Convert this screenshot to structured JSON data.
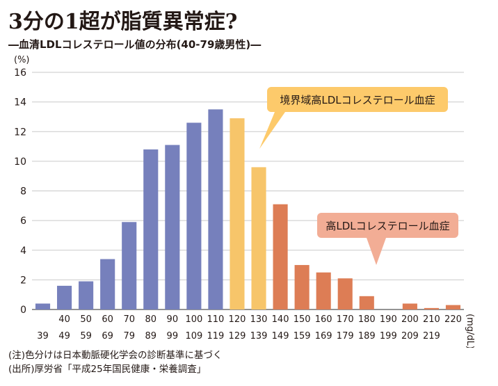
{
  "header": {
    "title": "3分の1超が脂質異常症?",
    "subtitle": "―血清LDLコレステロール値の分布(40-79歳男性)―"
  },
  "footnotes": {
    "note": "(注)色分けは日本動脈硬化学会の診断基準に基づく",
    "source": "(出所)厚労省「平成25年国民健康・栄養調査」"
  },
  "colors": {
    "normal": "#7680bc",
    "borderline": "#f7c56a",
    "high": "#dd7d55",
    "callout_borderline": "#fdca6b",
    "callout_high": "#f2ad95",
    "grid": "#c9c9c9",
    "axis": "#555555",
    "text": "#231815"
  },
  "chart_data": {
    "type": "bar",
    "title": "",
    "ylabel": "(%)",
    "xlabel": "(mg/dL)",
    "ylim": [
      0,
      16
    ],
    "yticks": [
      0,
      2,
      4,
      6,
      8,
      10,
      12,
      14,
      16
    ],
    "grid": true,
    "categories": [
      {
        "top": "",
        "bottom": "39"
      },
      {
        "top": "40",
        "bottom": "49"
      },
      {
        "top": "50",
        "bottom": "59"
      },
      {
        "top": "60",
        "bottom": "69"
      },
      {
        "top": "70",
        "bottom": "79"
      },
      {
        "top": "80",
        "bottom": "89"
      },
      {
        "top": "90",
        "bottom": "99"
      },
      {
        "top": "100",
        "bottom": "109"
      },
      {
        "top": "110",
        "bottom": "119"
      },
      {
        "top": "120",
        "bottom": "129"
      },
      {
        "top": "130",
        "bottom": "139"
      },
      {
        "top": "140",
        "bottom": "149"
      },
      {
        "top": "150",
        "bottom": "159"
      },
      {
        "top": "160",
        "bottom": "169"
      },
      {
        "top": "170",
        "bottom": "179"
      },
      {
        "top": "180",
        "bottom": "189"
      },
      {
        "top": "190",
        "bottom": "199"
      },
      {
        "top": "200",
        "bottom": "209"
      },
      {
        "top": "210",
        "bottom": "219"
      },
      {
        "top": "220",
        "bottom": ""
      }
    ],
    "values": [
      0.4,
      1.6,
      1.9,
      3.4,
      5.9,
      10.8,
      11.1,
      12.6,
      13.5,
      12.9,
      9.6,
      7.1,
      3.0,
      2.5,
      2.1,
      0.9,
      0.0,
      0.4,
      0.1,
      0.3
    ],
    "groups": [
      "normal",
      "normal",
      "normal",
      "normal",
      "normal",
      "normal",
      "normal",
      "normal",
      "normal",
      "borderline",
      "borderline",
      "high",
      "high",
      "high",
      "high",
      "high",
      "high",
      "high",
      "high",
      "high"
    ],
    "annotations": [
      {
        "text": "境界域高LDLコレステロール血症",
        "group": "borderline"
      },
      {
        "text": "高LDLコレステロール血症",
        "group": "high"
      }
    ]
  }
}
